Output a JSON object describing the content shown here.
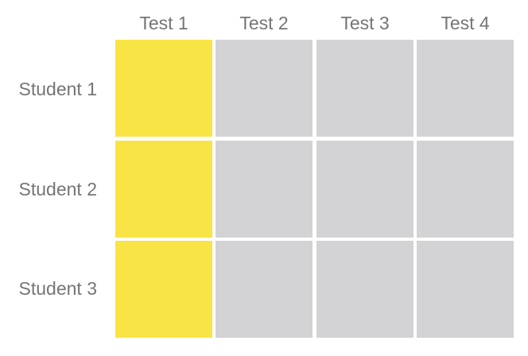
{
  "columns": [
    "Test 1",
    "Test 2",
    "Test 3",
    "Test 4"
  ],
  "rows": [
    "Student 1",
    "Student 2",
    "Student 3"
  ],
  "highlighted_column": 0,
  "colors": {
    "highlight": "#f8e444",
    "cell": "#d3d3d5",
    "text": "#757575",
    "background": "#ffffff"
  }
}
